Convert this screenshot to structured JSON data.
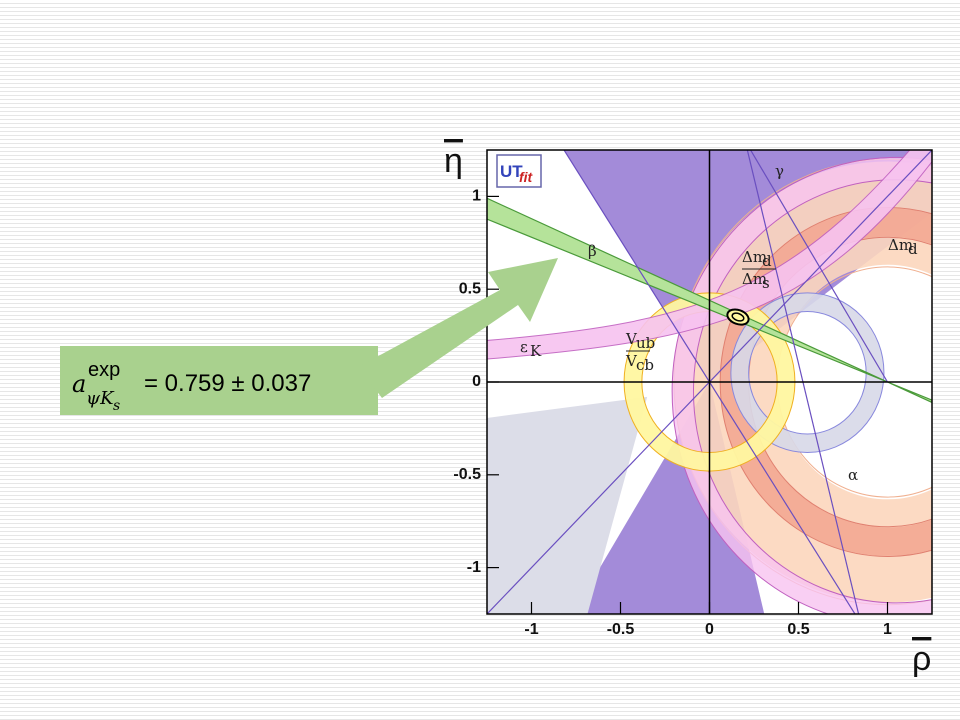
{
  "callout": {
    "symbol": "a",
    "superscript": "exp",
    "subscript": "ψK",
    "subsubscript": "s",
    "equation": "= 0.759 ± 0.037"
  },
  "chart_data": {
    "type": "constraints",
    "logo": "UT",
    "logo_fit": "fit",
    "x_label": "ρ",
    "y_label": "η",
    "xlim": [
      -1.25,
      1.25
    ],
    "ylim": [
      -1.25,
      1.25
    ],
    "xticks": [
      -1,
      -0.5,
      0,
      0.5,
      1
    ],
    "yticks": [
      -1,
      -0.5,
      0,
      0.5,
      1
    ],
    "annotations": [
      {
        "text": "γ"
      },
      {
        "text": "β"
      },
      {
        "text": "α"
      },
      {
        "text": "Δm",
        "sub": "d"
      },
      {
        "text": "Δm",
        "sub": "d",
        "den": "Δm",
        "den_sub": "s"
      },
      {
        "text": "ε",
        "sub": "K"
      },
      {
        "text": "V",
        "sub": "ub",
        "den": "V",
        "den_sub": "cb"
      }
    ]
  }
}
